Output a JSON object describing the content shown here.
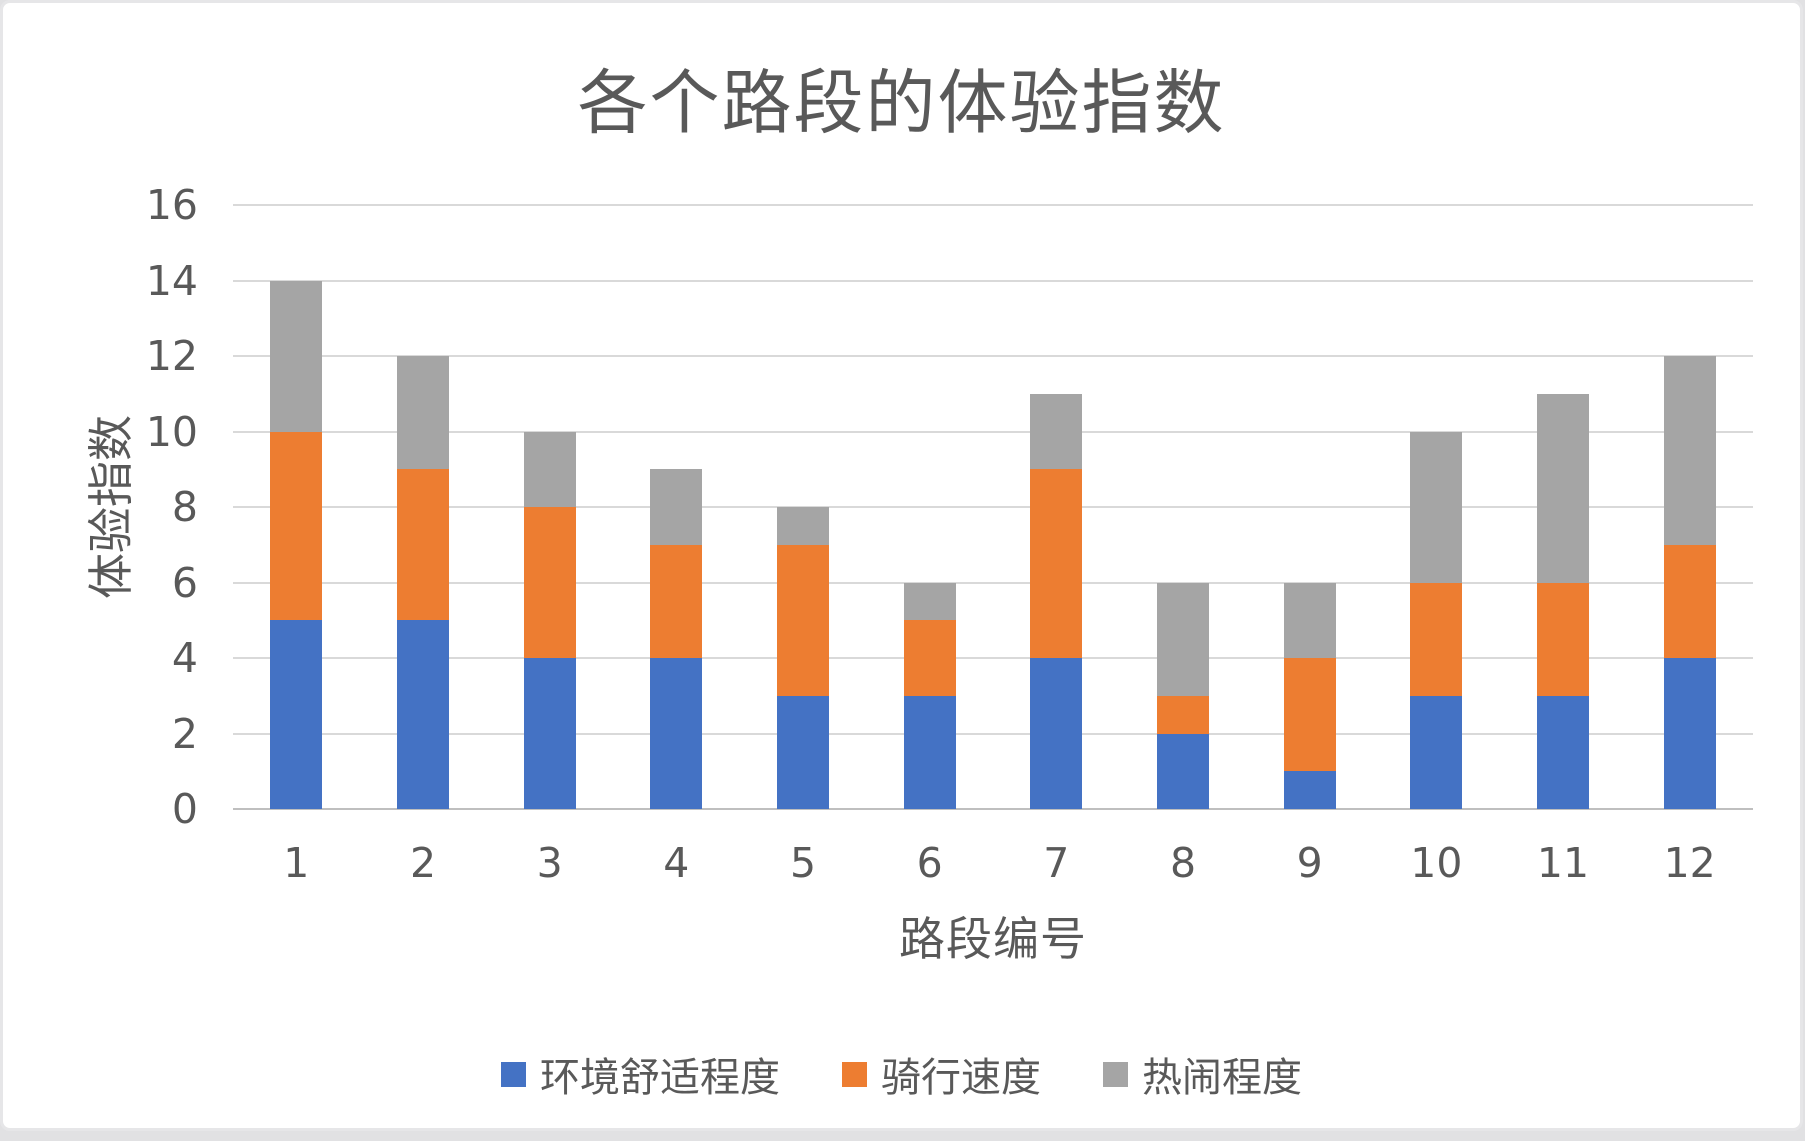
{
  "chart_data": {
    "type": "bar",
    "stacked": true,
    "title": "各个路段的体验指数",
    "xlabel": "路段编号",
    "ylabel": "体验指数",
    "categories": [
      "1",
      "2",
      "3",
      "4",
      "5",
      "6",
      "7",
      "8",
      "9",
      "10",
      "11",
      "12"
    ],
    "series": [
      {
        "name": "环境舒适程度",
        "color": "#4472C4",
        "values": [
          5,
          5,
          4,
          4,
          3,
          3,
          4,
          2,
          1,
          3,
          3,
          4
        ]
      },
      {
        "name": "骑行速度",
        "color": "#ED7D31",
        "values": [
          5,
          4,
          4,
          3,
          4,
          2,
          5,
          1,
          3,
          3,
          3,
          3
        ]
      },
      {
        "name": "热闹程度",
        "color": "#A5A5A5",
        "values": [
          4,
          3,
          2,
          2,
          1,
          1,
          2,
          3,
          2,
          4,
          5,
          5
        ]
      }
    ],
    "totals": [
      14,
      12,
      10,
      9,
      8,
      6,
      11,
      6,
      6,
      10,
      11,
      12
    ],
    "ylim": [
      0,
      16
    ],
    "y_ticks": [
      0,
      2,
      4,
      6,
      8,
      10,
      12,
      14,
      16
    ],
    "grid": "horizontal",
    "legend_position": "bottom",
    "style": {
      "text_color": "#595959",
      "gridline_color": "#d9d9d9",
      "axis_line_color": "#bfbfbf",
      "background_color": "#ffffff",
      "frame_color": "#e6e6e8"
    }
  }
}
